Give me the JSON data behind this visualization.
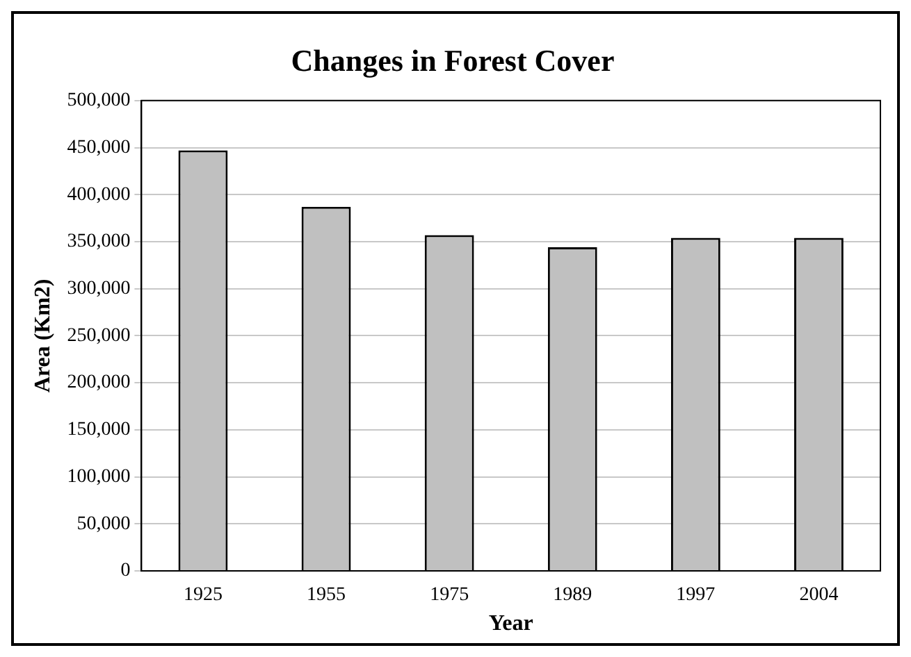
{
  "chart_data": {
    "type": "bar",
    "title": "Changes in Forest Cover",
    "xlabel": "Year",
    "ylabel": "Area (Km2)",
    "categories": [
      "1925",
      "1955",
      "1975",
      "1989",
      "1997",
      "2004"
    ],
    "values": [
      447000,
      387000,
      357000,
      344000,
      354000,
      354000
    ],
    "color": "#c0c0c0",
    "ylim": [
      0,
      500000
    ],
    "yticks": [
      0,
      {
        "value": 50000,
        "label": "50,000"
      },
      {
        "value": 100000,
        "label": "100,000"
      },
      {
        "value": 150000,
        "label": "150,000"
      },
      {
        "value": 200000,
        "label": "200,000"
      },
      {
        "value": 250000,
        "label": "250,000"
      },
      {
        "value": 300000,
        "label": "300,000"
      },
      {
        "value": 350000,
        "label": "350,000"
      },
      {
        "value": 400000,
        "label": "400,000"
      },
      {
        "value": 450000,
        "label": "450,000"
      },
      {
        "value": 500000,
        "label": "500,000"
      }
    ],
    "grid": "y",
    "legend": false
  }
}
